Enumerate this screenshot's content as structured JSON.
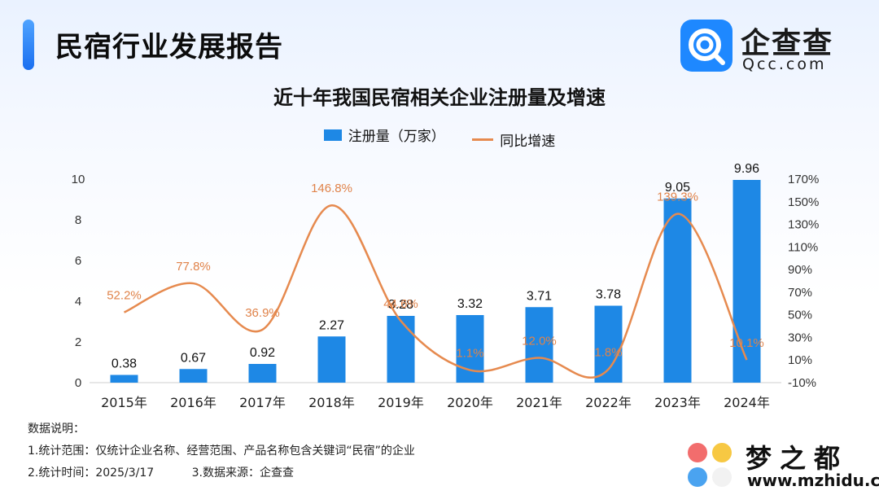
{
  "header": {
    "title": "民宿行业发展报告",
    "logo_cn": "企查查",
    "logo_en": "Qcc.com"
  },
  "colors": {
    "bar": "#1e88e5",
    "line": "#e68a4f",
    "label_line": "#e0834a",
    "brand": "#1e88ff"
  },
  "chart_data": {
    "type": "bar",
    "title": "近十年我国民宿相关企业注册量及增速",
    "categories": [
      "2015年",
      "2016年",
      "2017年",
      "2018年",
      "2019年",
      "2020年",
      "2021年",
      "2022年",
      "2023年",
      "2024年"
    ],
    "series": [
      {
        "name": "注册量（万家）",
        "type": "bar",
        "axis": "left",
        "values": [
          0.38,
          0.67,
          0.92,
          2.27,
          3.28,
          3.32,
          3.71,
          3.78,
          9.05,
          9.96
        ],
        "labels": [
          "0.38",
          "0.67",
          "0.92",
          "2.27",
          "3.28",
          "3.32",
          "3.71",
          "3.78",
          "9.05",
          "9.96"
        ]
      },
      {
        "name": "同比增速",
        "type": "line",
        "smooth": true,
        "axis": "right",
        "values": [
          52.2,
          77.8,
          36.9,
          146.8,
          44.6,
          1.1,
          12.0,
          1.8,
          139.3,
          10.1
        ],
        "labels": [
          "52.2%",
          "77.8%",
          "36.9%",
          "146.8%",
          "44.6%",
          "1.1%",
          "12.0%",
          "1.8%",
          "139.3%",
          "10.1%"
        ]
      }
    ],
    "y_left": {
      "ticks": [
        "0",
        "2",
        "4",
        "6",
        "8",
        "10"
      ],
      "min": 0,
      "max": 10
    },
    "y_right": {
      "ticks": [
        "-10%",
        "10%",
        "30%",
        "50%",
        "70%",
        "90%",
        "110%",
        "130%",
        "150%",
        "170%"
      ],
      "min": -10,
      "max": 170
    },
    "legend": "top-center",
    "grid": false
  },
  "notes": {
    "heading": "数据说明：",
    "line1": "1.统计范围：仅统计企业名称、经营范围、产品名称包含关键词“民宿”的企业",
    "line2a": "2.统计时间：2025/3/17",
    "line2b": "3.数据来源：企查查"
  },
  "watermark": {
    "cn": "梦之都",
    "url": "www.mzhidu.com"
  }
}
